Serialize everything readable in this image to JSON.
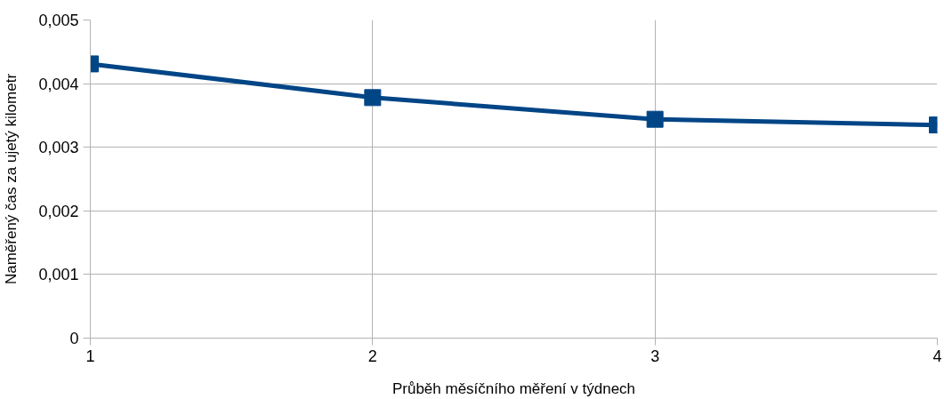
{
  "chart_data": {
    "type": "line",
    "xlabel": "Průběh měsíčního měření v týdnech",
    "ylabel": "Naměřený čas za ujetý kilometr",
    "x": [
      1,
      2,
      3,
      4
    ],
    "series": [
      {
        "color": "#004586",
        "values": [
          0.00431,
          0.00378,
          0.00344,
          0.00335
        ]
      }
    ],
    "xlim": [
      1,
      4
    ],
    "xticks": [
      1,
      2,
      3,
      4
    ],
    "ylim": [
      0,
      0.005
    ],
    "yticks": [
      {
        "value": 0,
        "label": "0"
      },
      {
        "value": 0.001,
        "label": "0,001"
      },
      {
        "value": 0.002,
        "label": "0,002"
      },
      {
        "value": 0.003,
        "label": "0,003"
      },
      {
        "value": 0.004,
        "label": "0,004"
      },
      {
        "value": 0.005,
        "label": "0,005"
      }
    ],
    "grid": true,
    "marker": "square",
    "line_style": "solid"
  }
}
